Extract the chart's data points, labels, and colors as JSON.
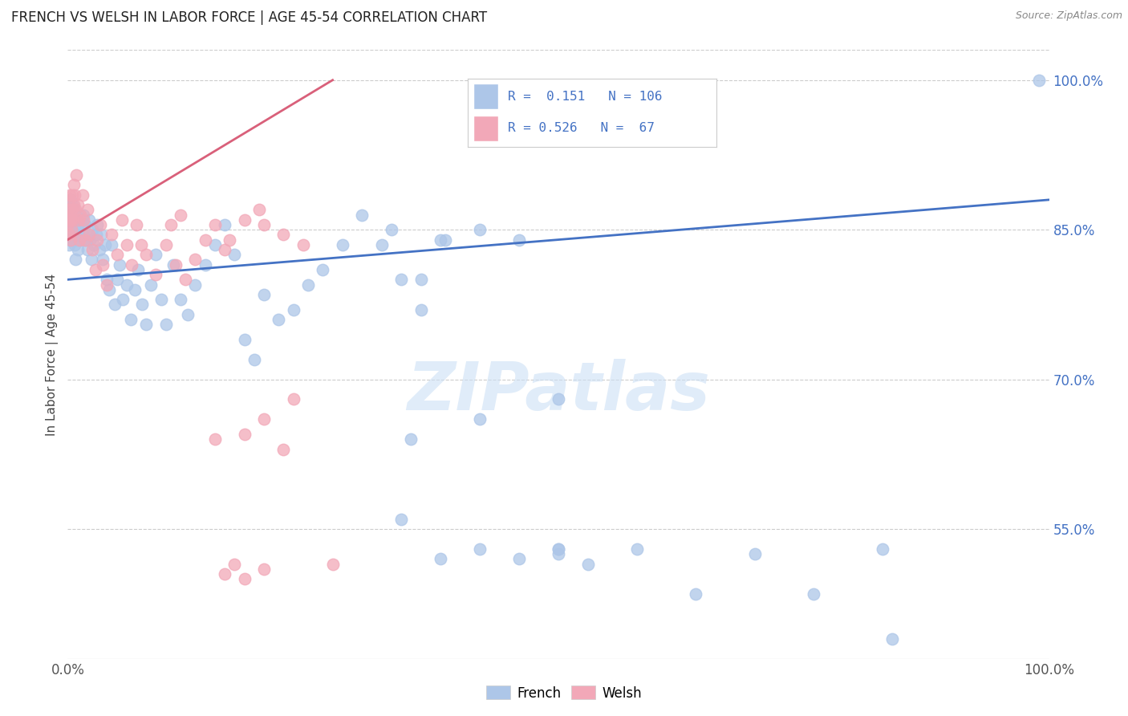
{
  "title": "FRENCH VS WELSH IN LABOR FORCE | AGE 45-54 CORRELATION CHART",
  "source": "Source: ZipAtlas.com",
  "ylabel": "In Labor Force | Age 45-54",
  "ytick_values": [
    1.0,
    0.85,
    0.7,
    0.55
  ],
  "xlim": [
    0.0,
    1.0
  ],
  "ylim": [
    0.42,
    1.03
  ],
  "french_color": "#adc6e8",
  "welsh_color": "#f2a8b8",
  "french_line_color": "#4472c4",
  "welsh_line_color": "#d9607a",
  "legend_text_color": "#4472c4",
  "french_R": 0.151,
  "french_N": 106,
  "welsh_R": 0.526,
  "welsh_N": 67,
  "french_scatter_x": [
    0.0,
    0.001,
    0.001,
    0.001,
    0.002,
    0.002,
    0.003,
    0.003,
    0.003,
    0.004,
    0.004,
    0.005,
    0.005,
    0.005,
    0.006,
    0.006,
    0.007,
    0.008,
    0.008,
    0.009,
    0.009,
    0.01,
    0.01,
    0.011,
    0.012,
    0.013,
    0.014,
    0.015,
    0.016,
    0.017,
    0.018,
    0.019,
    0.02,
    0.021,
    0.022,
    0.023,
    0.024,
    0.025,
    0.027,
    0.029,
    0.03,
    0.032,
    0.034,
    0.036,
    0.038,
    0.04,
    0.042,
    0.045,
    0.048,
    0.05,
    0.053,
    0.056,
    0.06,
    0.064,
    0.068,
    0.072,
    0.076,
    0.08,
    0.085,
    0.09,
    0.095,
    0.1,
    0.108,
    0.115,
    0.122,
    0.13,
    0.14,
    0.15,
    0.16,
    0.17,
    0.18,
    0.19,
    0.2,
    0.215,
    0.23,
    0.245,
    0.26,
    0.28,
    0.3,
    0.32,
    0.34,
    0.36,
    0.385,
    0.36,
    0.33,
    0.38,
    0.42,
    0.46,
    0.5,
    0.42,
    0.35,
    0.38,
    0.5,
    0.53,
    0.58,
    0.64,
    0.7,
    0.76,
    0.84,
    0.5,
    0.5,
    0.42,
    0.46,
    0.83,
    0.34,
    0.99
  ],
  "french_scatter_y": [
    0.845,
    0.86,
    0.835,
    0.875,
    0.88,
    0.85,
    0.84,
    0.86,
    0.88,
    0.855,
    0.87,
    0.84,
    0.855,
    0.875,
    0.84,
    0.87,
    0.835,
    0.82,
    0.845,
    0.84,
    0.865,
    0.83,
    0.855,
    0.845,
    0.86,
    0.84,
    0.855,
    0.845,
    0.865,
    0.84,
    0.855,
    0.84,
    0.83,
    0.845,
    0.86,
    0.84,
    0.82,
    0.85,
    0.835,
    0.845,
    0.855,
    0.83,
    0.845,
    0.82,
    0.835,
    0.8,
    0.79,
    0.835,
    0.775,
    0.8,
    0.815,
    0.78,
    0.795,
    0.76,
    0.79,
    0.81,
    0.775,
    0.755,
    0.795,
    0.825,
    0.78,
    0.755,
    0.815,
    0.78,
    0.765,
    0.795,
    0.815,
    0.835,
    0.855,
    0.825,
    0.74,
    0.72,
    0.785,
    0.76,
    0.77,
    0.795,
    0.81,
    0.835,
    0.865,
    0.835,
    0.8,
    0.77,
    0.84,
    0.8,
    0.85,
    0.84,
    0.85,
    0.84,
    0.68,
    0.66,
    0.64,
    0.52,
    0.53,
    0.515,
    0.53,
    0.485,
    0.525,
    0.485,
    0.44,
    0.525,
    0.53,
    0.53,
    0.52,
    0.53,
    0.56,
    1.0
  ],
  "welsh_scatter_x": [
    0.0,
    0.0,
    0.001,
    0.001,
    0.001,
    0.002,
    0.002,
    0.003,
    0.003,
    0.004,
    0.004,
    0.005,
    0.005,
    0.006,
    0.006,
    0.007,
    0.008,
    0.009,
    0.01,
    0.011,
    0.012,
    0.013,
    0.015,
    0.016,
    0.018,
    0.02,
    0.022,
    0.025,
    0.028,
    0.03,
    0.033,
    0.036,
    0.04,
    0.045,
    0.05,
    0.055,
    0.06,
    0.065,
    0.07,
    0.075,
    0.08,
    0.09,
    0.1,
    0.11,
    0.12,
    0.13,
    0.14,
    0.15,
    0.165,
    0.18,
    0.195,
    0.105,
    0.115,
    0.16,
    0.2,
    0.22,
    0.24,
    0.2,
    0.18,
    0.22,
    0.15,
    0.16,
    0.17,
    0.18,
    0.2,
    0.23,
    0.27
  ],
  "welsh_scatter_y": [
    0.855,
    0.87,
    0.88,
    0.86,
    0.845,
    0.885,
    0.865,
    0.86,
    0.84,
    0.87,
    0.85,
    0.885,
    0.86,
    0.895,
    0.875,
    0.885,
    0.87,
    0.905,
    0.875,
    0.86,
    0.84,
    0.865,
    0.885,
    0.86,
    0.84,
    0.87,
    0.845,
    0.83,
    0.81,
    0.84,
    0.855,
    0.815,
    0.795,
    0.845,
    0.825,
    0.86,
    0.835,
    0.815,
    0.855,
    0.835,
    0.825,
    0.805,
    0.835,
    0.815,
    0.8,
    0.82,
    0.84,
    0.855,
    0.84,
    0.86,
    0.87,
    0.855,
    0.865,
    0.83,
    0.855,
    0.845,
    0.835,
    0.66,
    0.645,
    0.63,
    0.64,
    0.505,
    0.515,
    0.5,
    0.51,
    0.68,
    0.515
  ],
  "french_line_y_start": 0.8,
  "french_line_y_end": 0.88,
  "welsh_line_x_end": 0.27,
  "welsh_line_y_start": 0.84,
  "welsh_line_y_end": 1.0,
  "watermark": "ZIPatlas",
  "background_color": "#ffffff",
  "grid_color": "#cccccc"
}
